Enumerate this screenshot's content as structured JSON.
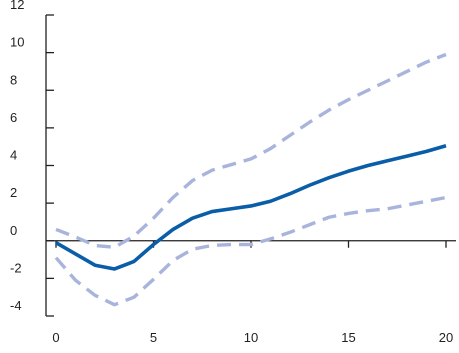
{
  "chart_data": {
    "type": "line",
    "title": "",
    "xlabel": "",
    "ylabel": "",
    "xlim": [
      0,
      20
    ],
    "ylim": [
      -4,
      12
    ],
    "xticks": [
      0,
      5,
      10,
      15,
      20
    ],
    "yticks": [
      -4,
      -2,
      0,
      2,
      4,
      6,
      8,
      10,
      12
    ],
    "grid": false,
    "x": [
      0,
      1,
      2,
      3,
      4,
      5,
      6,
      7,
      8,
      9,
      10,
      11,
      12,
      13,
      14,
      15,
      16,
      17,
      18,
      19,
      20
    ],
    "series": [
      {
        "role": "estimate",
        "style": "solid",
        "color": "#0a5ea8",
        "values": [
          -0.1,
          -0.7,
          -1.3,
          -1.5,
          -1.1,
          -0.2,
          0.6,
          1.2,
          1.55,
          1.7,
          1.85,
          2.1,
          2.5,
          2.95,
          3.35,
          3.7,
          4.0,
          4.25,
          4.5,
          4.75,
          5.05
        ]
      },
      {
        "role": "upper-band",
        "style": "dashed",
        "color": "#a9b4dc",
        "values": [
          0.6,
          0.2,
          -0.25,
          -0.35,
          0.25,
          1.2,
          2.3,
          3.2,
          3.75,
          4.05,
          4.35,
          4.9,
          5.6,
          6.3,
          6.95,
          7.5,
          8.0,
          8.5,
          9.0,
          9.5,
          9.9
        ]
      },
      {
        "role": "lower-band",
        "style": "dashed",
        "color": "#a9b4dc",
        "values": [
          -0.9,
          -2.1,
          -2.9,
          -3.4,
          -3.0,
          -2.05,
          -1.05,
          -0.45,
          -0.25,
          -0.2,
          -0.2,
          0.1,
          0.45,
          0.85,
          1.25,
          1.45,
          1.6,
          1.7,
          1.9,
          2.1,
          2.3
        ]
      }
    ]
  }
}
